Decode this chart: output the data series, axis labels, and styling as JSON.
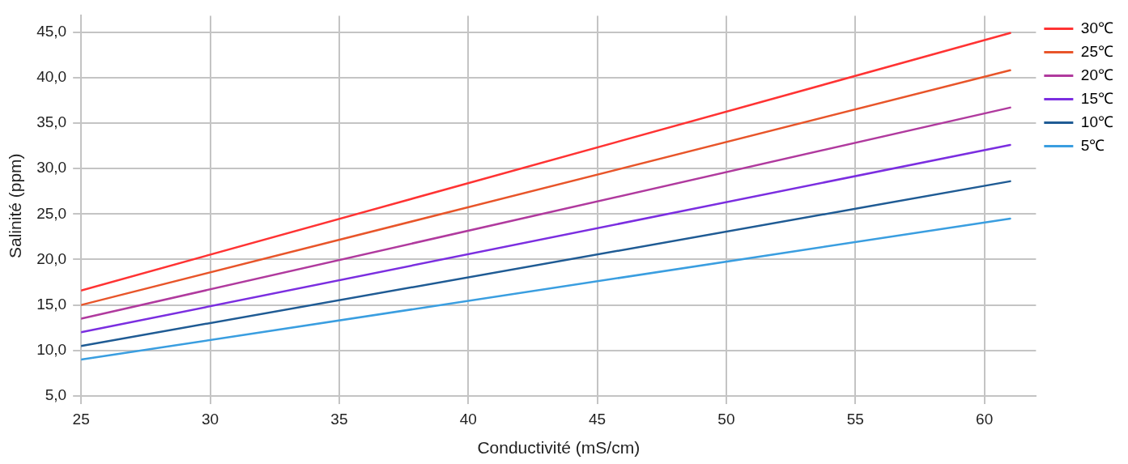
{
  "chart_data": {
    "type": "line",
    "xlabel": "Conductivité (mS/cm)",
    "ylabel": "Salinité (ppm)",
    "x": [
      25,
      61
    ],
    "series": [
      {
        "name": "30℃",
        "color": "#ff3333",
        "values": [
          16.6,
          44.9
        ]
      },
      {
        "name": "25℃",
        "color": "#e8552a",
        "values": [
          15.0,
          40.8
        ]
      },
      {
        "name": "20℃",
        "color": "#b03a9e",
        "values": [
          13.5,
          36.7
        ]
      },
      {
        "name": "15℃",
        "color": "#7b2ee0",
        "values": [
          12.0,
          32.6
        ]
      },
      {
        "name": "10℃",
        "color": "#1f5b94",
        "values": [
          10.5,
          28.6
        ]
      },
      {
        "name": "5℃",
        "color": "#3a9ee0",
        "values": [
          9.0,
          24.5
        ]
      }
    ],
    "xlim": [
      25,
      62
    ],
    "xticks": [
      25,
      30,
      35,
      40,
      45,
      50,
      55,
      60
    ],
    "ylim": [
      5,
      46.8
    ],
    "yticks": [
      {
        "value": 5,
        "label": "5,0"
      },
      {
        "value": 10,
        "label": "10,0"
      },
      {
        "value": 15,
        "label": "15,0"
      },
      {
        "value": 20,
        "label": "20,0"
      },
      {
        "value": 25,
        "label": "25,0"
      },
      {
        "value": 30,
        "label": "30,0"
      },
      {
        "value": 35,
        "label": "35,0"
      },
      {
        "value": 40,
        "label": "40,0"
      },
      {
        "value": 45,
        "label": "45,0"
      }
    ],
    "grid": true,
    "legend": "right",
    "marker": "none",
    "line_style": "solid"
  }
}
